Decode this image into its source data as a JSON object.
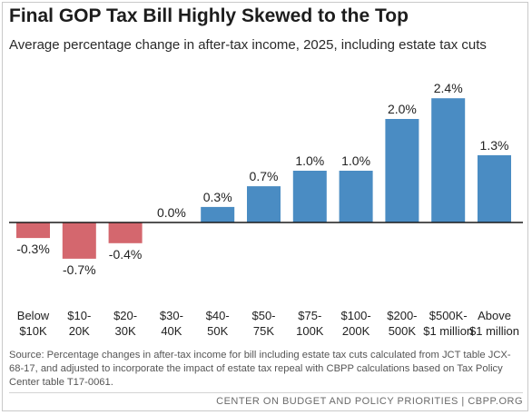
{
  "title": "Final GOP Tax Bill Highly Skewed to the Top",
  "subtitle": "Average percentage change in after-tax income, 2025, including estate tax cuts",
  "source": "Source: Percentage changes in after-tax income for bill including estate tax cuts calculated from JCT table JCX-68-17, and adjusted to incorporate the impact of estate tax repeal with CBPP calculations based on Tax Policy Center table T17-0061.",
  "footer": "CENTER ON BUDGET AND POLICY PRIORITIES | CBPP.ORG",
  "chart_data": {
    "type": "bar",
    "title": "Final GOP Tax Bill Highly Skewed to the Top",
    "subtitle": "Average percentage change in after-tax income, 2025, including estate tax cuts",
    "categories": [
      [
        "Below",
        "$10K"
      ],
      [
        "$10-",
        "20K"
      ],
      [
        "$20-",
        "30K"
      ],
      [
        "$30-",
        "40K"
      ],
      [
        "$40-",
        "50K"
      ],
      [
        "$50-",
        "75K"
      ],
      [
        "$75-",
        "100K"
      ],
      [
        "$100-",
        "200K"
      ],
      [
        "$200-",
        "500K"
      ],
      [
        "$500K-",
        "$1 million"
      ],
      [
        "Above",
        "$1 million"
      ]
    ],
    "values": [
      -0.3,
      -0.7,
      -0.4,
      0.0,
      0.3,
      0.7,
      1.0,
      1.0,
      2.0,
      2.4,
      1.3
    ],
    "labels": [
      "-0.3%",
      "-0.7%",
      "-0.4%",
      "0.0%",
      "0.3%",
      "0.7%",
      "1.0%",
      "1.0%",
      "2.0%",
      "2.4%",
      "1.3%"
    ],
    "colors": {
      "positive": "#4a8cc3",
      "negative": "#d4676e",
      "baseline": "#1a1a1a"
    },
    "xlabel": "",
    "ylabel": "",
    "grid": false,
    "legend": "none"
  }
}
